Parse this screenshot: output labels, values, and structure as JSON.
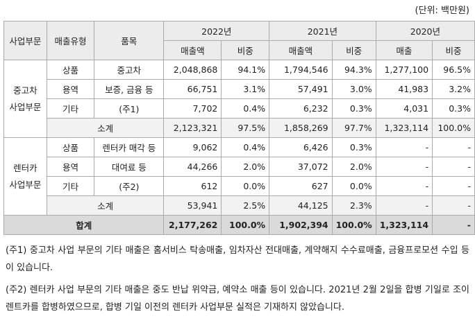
{
  "unit": "(단위: 백만원)",
  "table": {
    "headers": {
      "row1": [
        "사업부문",
        "매출유형",
        "품목",
        "2022년",
        "2021년",
        "2020년"
      ],
      "row2": [
        "매출액",
        "비중",
        "매출액",
        "비중",
        "매출",
        "비중"
      ]
    },
    "groups": [
      {
        "segment": [
          "중고차",
          "사업부문"
        ],
        "rows": [
          {
            "type": "상품",
            "item": "중고차",
            "values": [
              "2,048,868",
              "94.1%",
              "1,794,546",
              "94.3%",
              "1,277,100",
              "96.5%"
            ]
          },
          {
            "type": "용역",
            "item": "보증, 금융 등",
            "values": [
              "66,751",
              "3.1%",
              "57,491",
              "3.0%",
              "41,983",
              "3.2%"
            ]
          },
          {
            "type": "기타",
            "item": "(주1)",
            "values": [
              "7,702",
              "0.4%",
              "6,232",
              "0.3%",
              "4,031",
              "0.3%"
            ]
          }
        ],
        "subtotal": {
          "label": "소계",
          "values": [
            "2,123,321",
            "97.5%",
            "1,858,269",
            "97.7%",
            "1,323,114",
            "100.0%"
          ]
        }
      },
      {
        "segment": [
          "렌터카",
          "사업부문"
        ],
        "rows": [
          {
            "type": "상품",
            "item": "렌터카 매각 등",
            "values": [
              "9,062",
              "0.4%",
              "6,426",
              "0.3%",
              "-",
              "-"
            ]
          },
          {
            "type": "용역",
            "item": "대여료 등",
            "values": [
              "44,266",
              "2.0%",
              "37,072",
              "2.0%",
              "-",
              "-"
            ]
          },
          {
            "type": "기타",
            "item": "(주2)",
            "values": [
              "612",
              "0.0%",
              "627",
              "0.0%",
              "-",
              "-"
            ]
          }
        ],
        "subtotal": {
          "label": "소계",
          "values": [
            "53,941",
            "2.5%",
            "44,125",
            "2.3%",
            "-",
            "-"
          ]
        }
      }
    ],
    "total": {
      "label": "합계",
      "values": [
        "2,177,262",
        "100.0%",
        "1,902,394",
        "100.0%",
        "1,323,114",
        "-"
      ]
    }
  },
  "notes": [
    "(주1) 중고차 사업 부문의 기타 매출은 홈서비스 탁송매출, 임차자산 전대매출, 계약해지 수수료매출, 금융프로모션 수입 등이 있습니다.",
    "(주2) 렌터카 사업 부문의 기타 매출은 중도 반납 위약금, 예약소 매출 등이 있습니다. 2021년 2월 2일을 합병 기일로 조이렌트카를 합병하였으므로, 합병 기일 이전의 렌터카 사업부문 실적은 기재하지 않았습니다."
  ]
}
